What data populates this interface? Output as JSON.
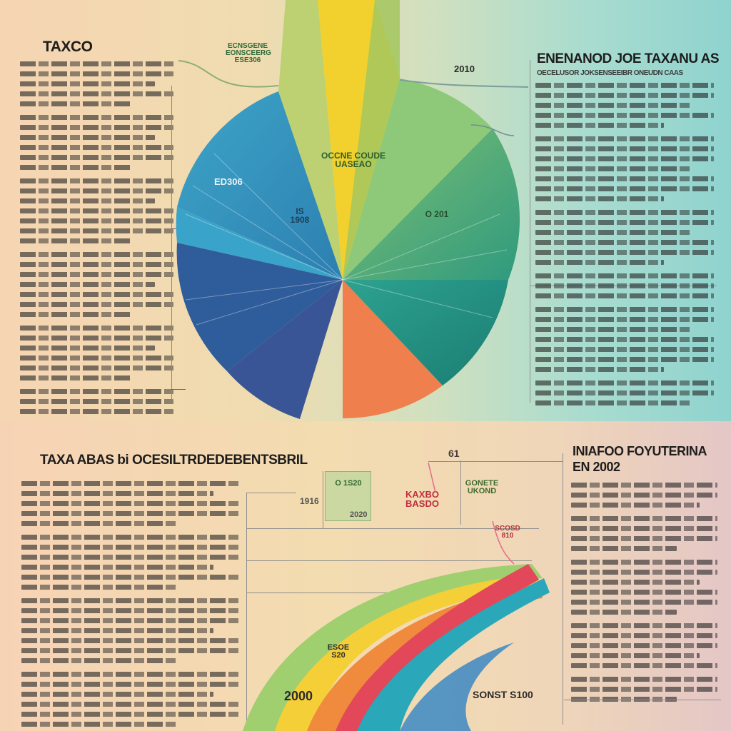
{
  "top": {
    "title_left": "TAXCO",
    "title_right": "ENENANOD JOE TAXANU AS",
    "subtitle_right": "OECELUSOR JOKSENSEEIBR ONEUDN CAAS",
    "callout_top_left": "ECNSGENE EONSCEERG ESE306",
    "callout_top_right": "2010",
    "pie_label_center": "OCCNE COUDE UASEAO",
    "pie_label_left": "ED306",
    "pie_label_mid": "IS 1908",
    "pie_label_right": "O 201",
    "colors": {
      "blue": "#2f8fbf",
      "dark_blue": "#2f5c9a",
      "green": "#3fa27a",
      "yellow": "#f2d02e",
      "orange": "#ef7f4c",
      "teal": "#1f8c84"
    }
  },
  "bottom": {
    "title_left": "TAXA ABAS bi OCESILTRDEDEBENTSBRIL",
    "title_right_line1": "INIAFOO FOYUTERINA",
    "title_right_line2": "EN 2002",
    "label_top_a": "61",
    "label_b_green": "O 1S20",
    "label_c_red": "KAXBO BASDO",
    "label_d_green": "GONETE UKOND",
    "label_e": "1916",
    "label_f": "2020",
    "label_g": "SCOSD 810",
    "label_h": "ESOE S20",
    "label_bottom_right": "SONST S100",
    "label_bottom_left": "2000",
    "colors": {
      "red": "#e2475a",
      "orange": "#f08a3c",
      "yellow": "#f4cf38",
      "teal": "#2aa7b9",
      "green": "#7cc46a"
    }
  }
}
